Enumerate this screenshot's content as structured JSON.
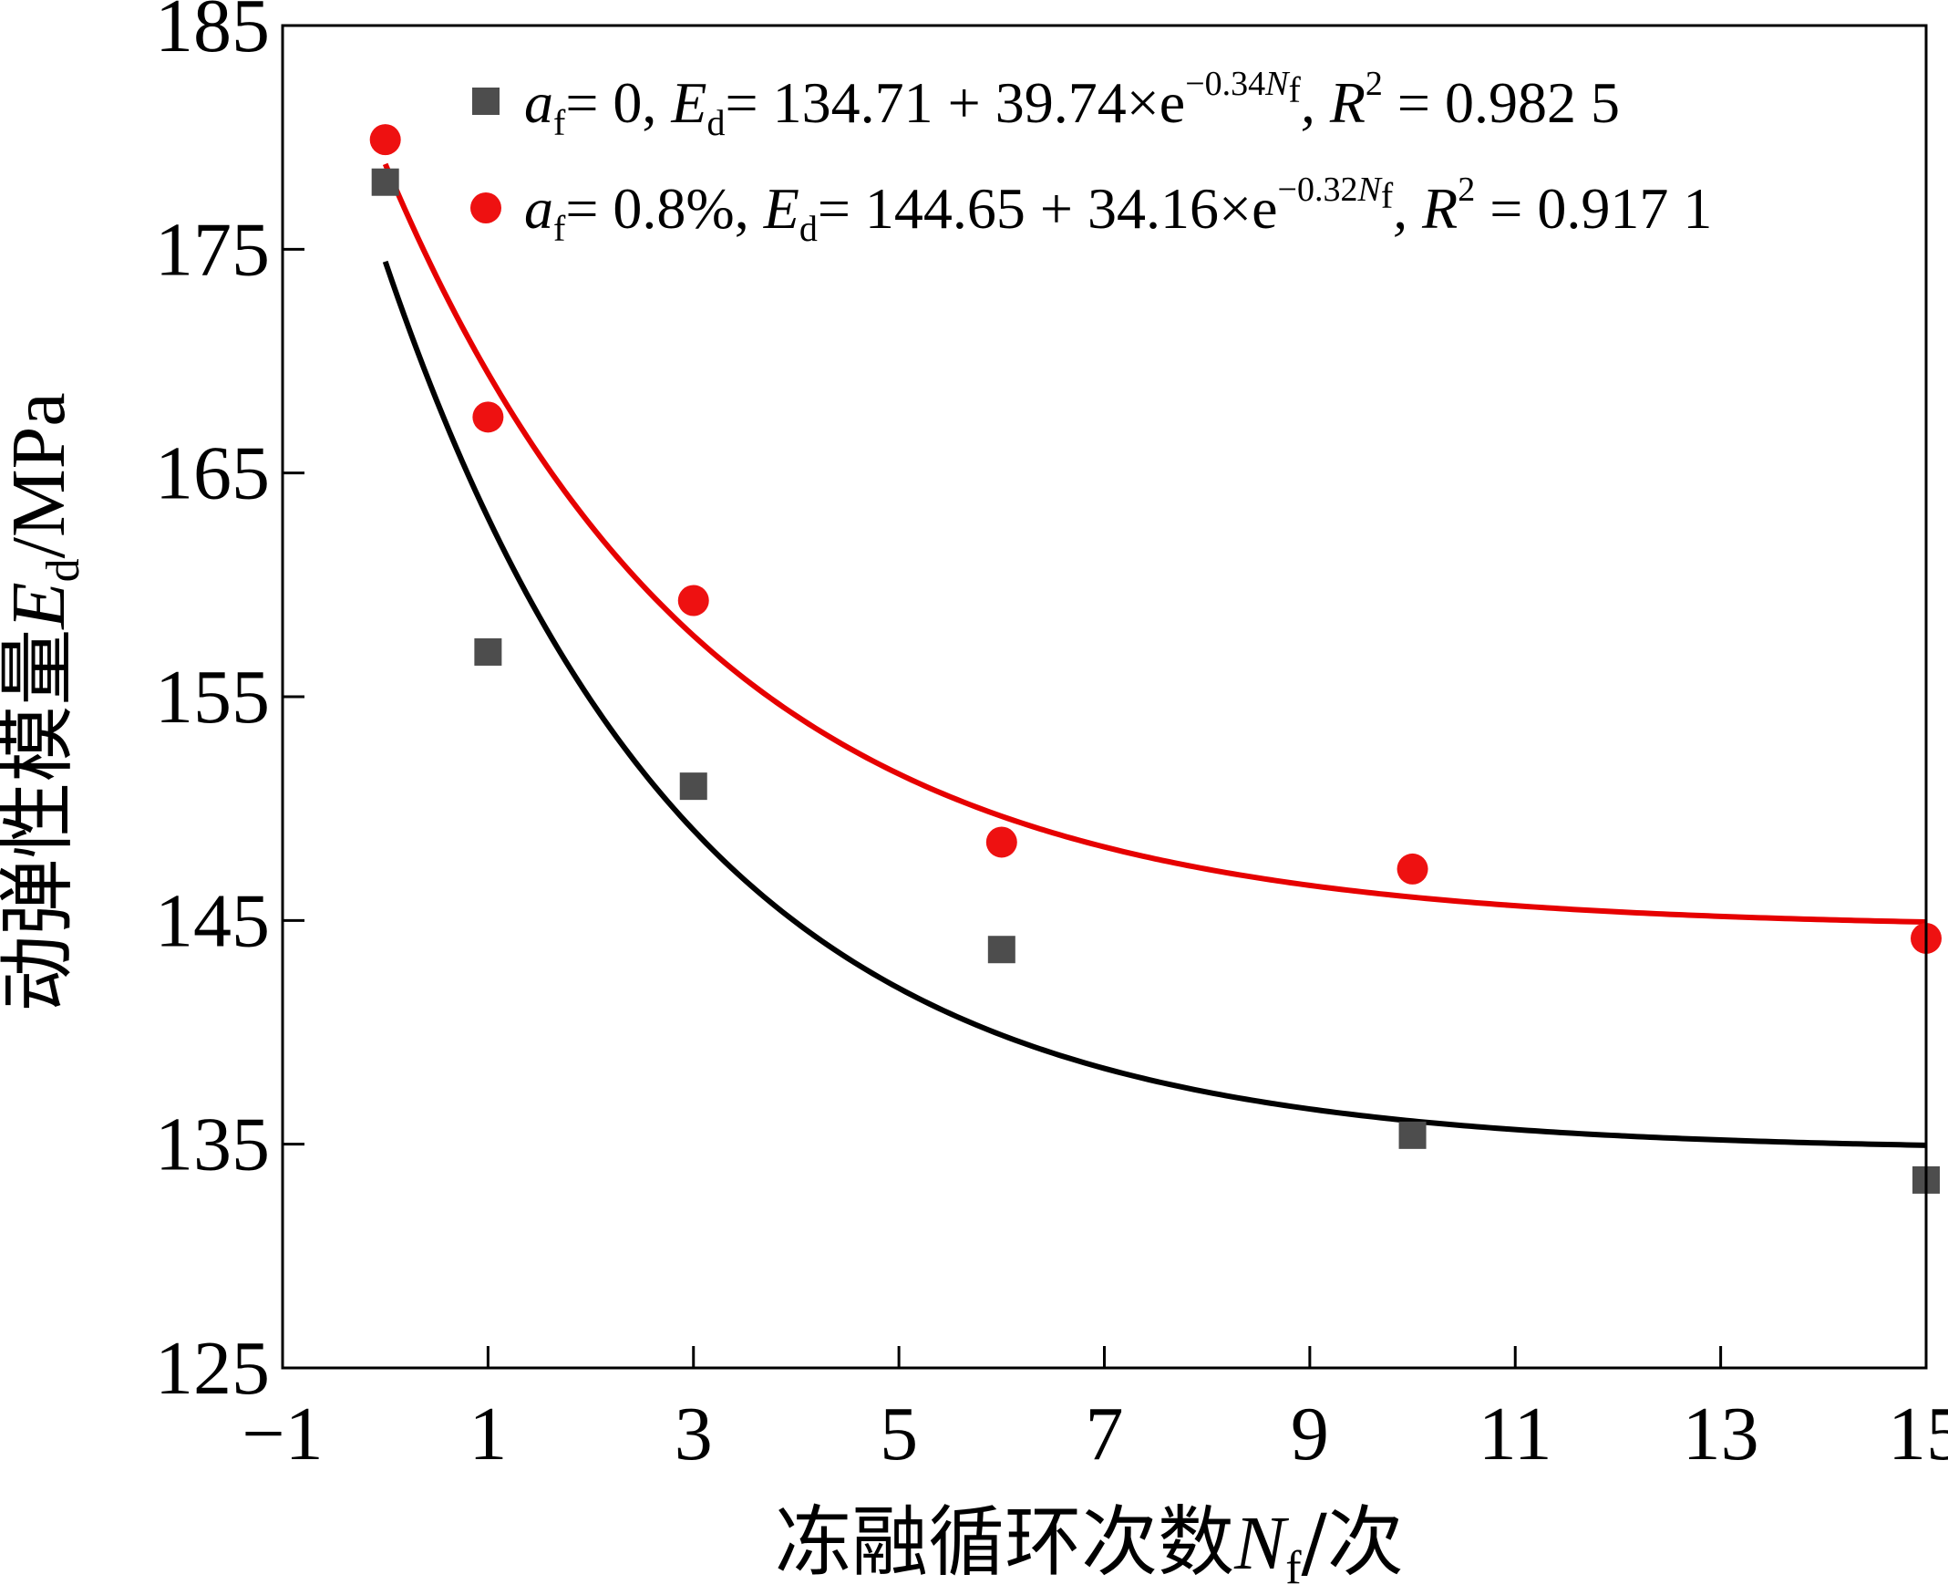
{
  "chart_data": {
    "type": "scatter",
    "xlabel": "冻融循环次数N_f/次",
    "ylabel": "动弹性模量E_d/MPa",
    "xlim": [
      -1,
      15
    ],
    "ylim": [
      125,
      185
    ],
    "xticks": [
      -1,
      1,
      3,
      5,
      7,
      9,
      11,
      13,
      15
    ],
    "yticks": [
      125,
      135,
      145,
      155,
      165,
      175,
      185
    ],
    "x_tick_labels": [
      "−1",
      "1",
      "3",
      "5",
      "7",
      "9",
      "11",
      "13",
      "15"
    ],
    "y_tick_labels": [
      "125",
      "135",
      "145",
      "155",
      "165",
      "175",
      "185"
    ],
    "legend_position": "top",
    "grid": false,
    "series": [
      {
        "name": "a_f = 0, E_d = 134.71 + 39.74 × e^(−0.34N_f), R² = 0.982 5",
        "marker": "square",
        "color": "#4d4d4d",
        "line_color": "#000000",
        "x": [
          0,
          1,
          3,
          6,
          10,
          15
        ],
        "y": [
          178.0,
          157.0,
          151.0,
          143.7,
          135.4,
          133.4
        ],
        "fit": {
          "a": 134.71,
          "b": 39.74,
          "k": 0.34
        }
      },
      {
        "name": "a_f = 0.8%, E_d = 144.65 + 34.16 × e^(−0.32N_f), R² = 0.917 1",
        "marker": "circle",
        "color": "#ee1111",
        "line_color": "#e60000",
        "x": [
          0,
          1,
          3,
          6,
          10,
          15
        ],
        "y": [
          179.9,
          167.5,
          159.3,
          148.5,
          147.3,
          144.2
        ],
        "fit": {
          "a": 144.65,
          "b": 34.16,
          "k": 0.32
        }
      }
    ]
  },
  "legend": {
    "entries": [
      {
        "a_sym": "a",
        "a_sub": "f",
        "a_val": "= 0, ",
        "e_sym": "E",
        "e_sub": "d",
        "eq_main": "= 134.71 + 39.74×e",
        "exp": "−0.34",
        "exp_n": "N",
        "exp_n_sub": "f",
        "r_sym": ", R",
        "r_sup": "2",
        "r_val": " = 0.982 5"
      },
      {
        "a_sym": "a",
        "a_sub": "f",
        "a_val": "= 0.8%, ",
        "e_sym": "E",
        "e_sub": "d",
        "eq_main": "= 144.65 + 34.16×e",
        "exp": "−0.32",
        "exp_n": "N",
        "exp_n_sub": "f",
        "r_sym": ", R",
        "r_sup": "2",
        "r_val": " = 0.917 1"
      }
    ]
  },
  "axis_titles": {
    "x": {
      "prefix": "冻融循环次数",
      "sym": "N",
      "sub": "f",
      "suffix": "/次"
    },
    "y": {
      "prefix": "动弹性模量",
      "sym": "E",
      "sub": "d",
      "suffix": "/MPa"
    }
  }
}
